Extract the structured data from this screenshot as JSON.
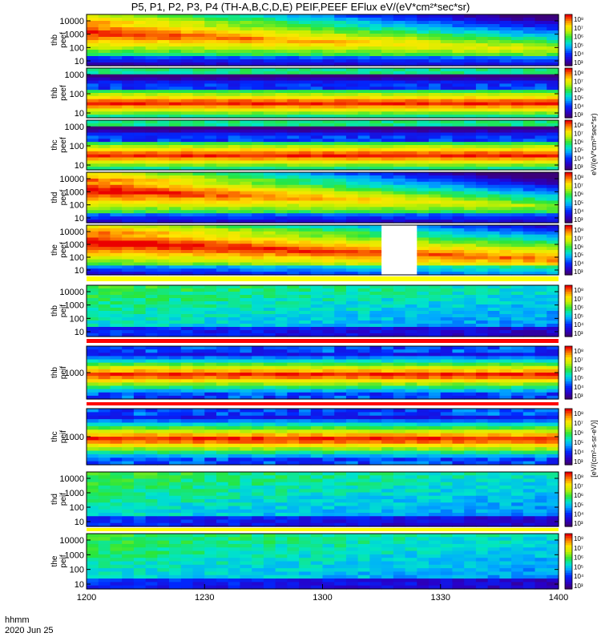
{
  "chart_data": {
    "type": "heatmap",
    "title": "P5, P1, P2, P3, P4 (TH-A,B,C,D,E) PEIF,PEEF EFlux eV/(eV*cm²*sec*sr)",
    "xlabel_line1": "hhmm",
    "xlabel_line2": "2020 Jun 25",
    "x_ticks": [
      "1200",
      "1230",
      "1300",
      "1330",
      "1400"
    ],
    "xlim": [
      1200,
      1400
    ],
    "colorbar_ticks": [
      "10⁸",
      "10⁷",
      "10⁶",
      "10⁵",
      "10⁴",
      "10³"
    ],
    "colorbar_label_electron": "eV/(eV*cm²*sec*sr)",
    "colorbar_label_ion": "[eV/(cm²-s-sr-eV)]",
    "colormap": "rainbow",
    "panels": [
      {
        "label1": "thb",
        "label2": "peef",
        "kind": "electron",
        "yticks": [
          "10000",
          "1000",
          "100",
          "10"
        ],
        "ylim_log": [
          0.9,
          4.4
        ],
        "start_level": 0.85,
        "end_level": 0.55
      },
      {
        "label1": "thb",
        "label2": "peef",
        "kind": "band",
        "yticks": [
          "1000",
          "100",
          "10"
        ],
        "ylim_log": [
          0.6,
          3.2
        ]
      },
      {
        "label1": "thc",
        "label2": "peef",
        "kind": "band",
        "yticks": [
          "1000",
          "100",
          "10"
        ],
        "ylim_log": [
          0.6,
          3.2
        ]
      },
      {
        "label1": "thd",
        "label2": "peef",
        "kind": "electron",
        "yticks": [
          "10000",
          "1000",
          "100",
          "10"
        ],
        "ylim_log": [
          0.9,
          4.4
        ],
        "start_level": 0.9,
        "end_level": 0.5
      },
      {
        "label1": "the",
        "label2": "peef",
        "kind": "electron",
        "yticks": [
          "10000",
          "1000",
          "100",
          "10"
        ],
        "ylim_log": [
          0.9,
          4.4
        ],
        "start_level": 0.9,
        "end_level": 0.75,
        "gap_x": [
          1316,
          1325
        ]
      },
      {
        "label1": "thb",
        "label2": "peif",
        "kind": "ion",
        "yticks": [
          "10000",
          "1000",
          "100",
          "10"
        ],
        "ylim_log": [
          0.8,
          4.4
        ]
      },
      {
        "label1": "thb",
        "label2": "peif",
        "kind": "ionband",
        "yticks": [
          "1000"
        ]
      },
      {
        "label1": "thc",
        "label2": "peif",
        "kind": "ionband",
        "yticks": [
          "1000"
        ]
      },
      {
        "label1": "thd",
        "label2": "peif",
        "kind": "ion",
        "yticks": [
          "10000",
          "1000",
          "100",
          "10"
        ],
        "ylim_log": [
          0.8,
          4.4
        ]
      },
      {
        "label1": "the",
        "label2": "peif",
        "kind": "ion",
        "yticks": [
          "10000",
          "1000",
          "100",
          "10"
        ],
        "ylim_log": [
          0.8,
          4.4
        ]
      }
    ]
  }
}
